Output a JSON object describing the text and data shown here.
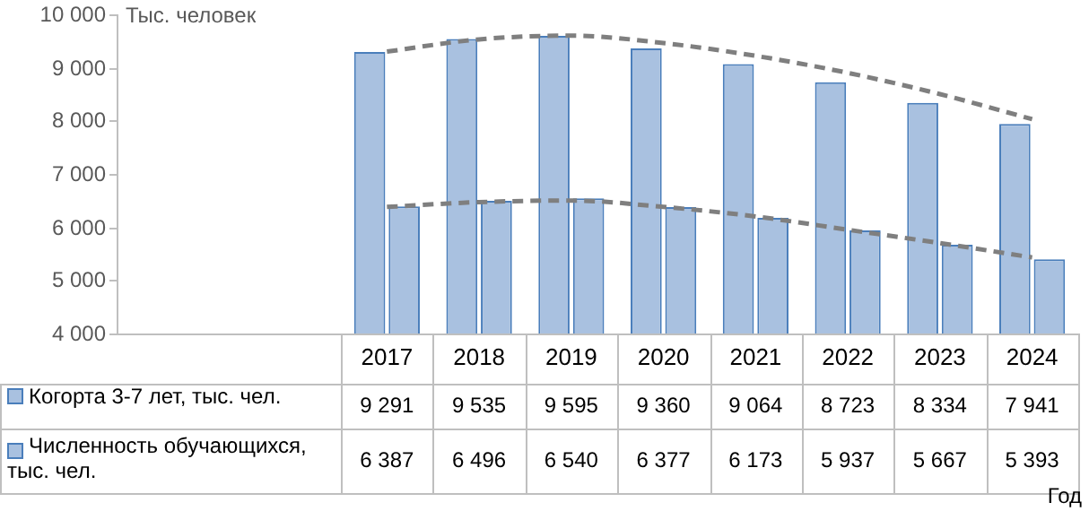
{
  "chart_data": {
    "type": "bar",
    "ylabel": "Тыс. человек",
    "annotations": [
      "Год"
    ],
    "categories": [
      "2017",
      "2018",
      "2019",
      "2020",
      "2021",
      "2022",
      "2023",
      "2024"
    ],
    "series": [
      {
        "name": "Когорта 3-7 лет, тыс. чел.",
        "color": "#a9c1e0",
        "values": [
          9291,
          9535,
          9595,
          9360,
          9064,
          8723,
          8334,
          7941
        ],
        "value_labels": [
          "9 291",
          "9 535",
          "9 595",
          "9 360",
          "9 064",
          "8 723",
          "8 334",
          "7 941"
        ]
      },
      {
        "name": "Численность обучающихся, тыс. чел.",
        "color": "#a9c1e0",
        "values": [
          6387,
          6496,
          6540,
          6377,
          6173,
          5937,
          5667,
          5393
        ],
        "value_labels": [
          "6 387",
          "6 496",
          "6 540",
          "6 377",
          "6 173",
          "5 937",
          "5 667",
          "5 393"
        ]
      },
      {
        "type": "line",
        "color": "#7f7f7f",
        "line_style": "dashed",
        "marker": "none",
        "values": [
          9300,
          9530,
          9600,
          9460,
          9220,
          8900,
          8500,
          8030
        ]
      },
      {
        "type": "line",
        "color": "#7f7f7f",
        "line_style": "dashed",
        "marker": "none",
        "values": [
          6380,
          6470,
          6500,
          6380,
          6200,
          5950,
          5700,
          5430
        ]
      }
    ],
    "ylim": [
      4000,
      10000
    ],
    "yticks": [
      {
        "value": 4000,
        "label": "4 000"
      },
      {
        "value": 5000,
        "label": "5 000"
      },
      {
        "value": 6000,
        "label": "6 000"
      },
      {
        "value": 7000,
        "label": "7 000"
      },
      {
        "value": 8000,
        "label": "8 000"
      },
      {
        "value": 9000,
        "label": "9 000"
      },
      {
        "value": 10000,
        "label": "10 000"
      }
    ],
    "legend": "bottom"
  }
}
